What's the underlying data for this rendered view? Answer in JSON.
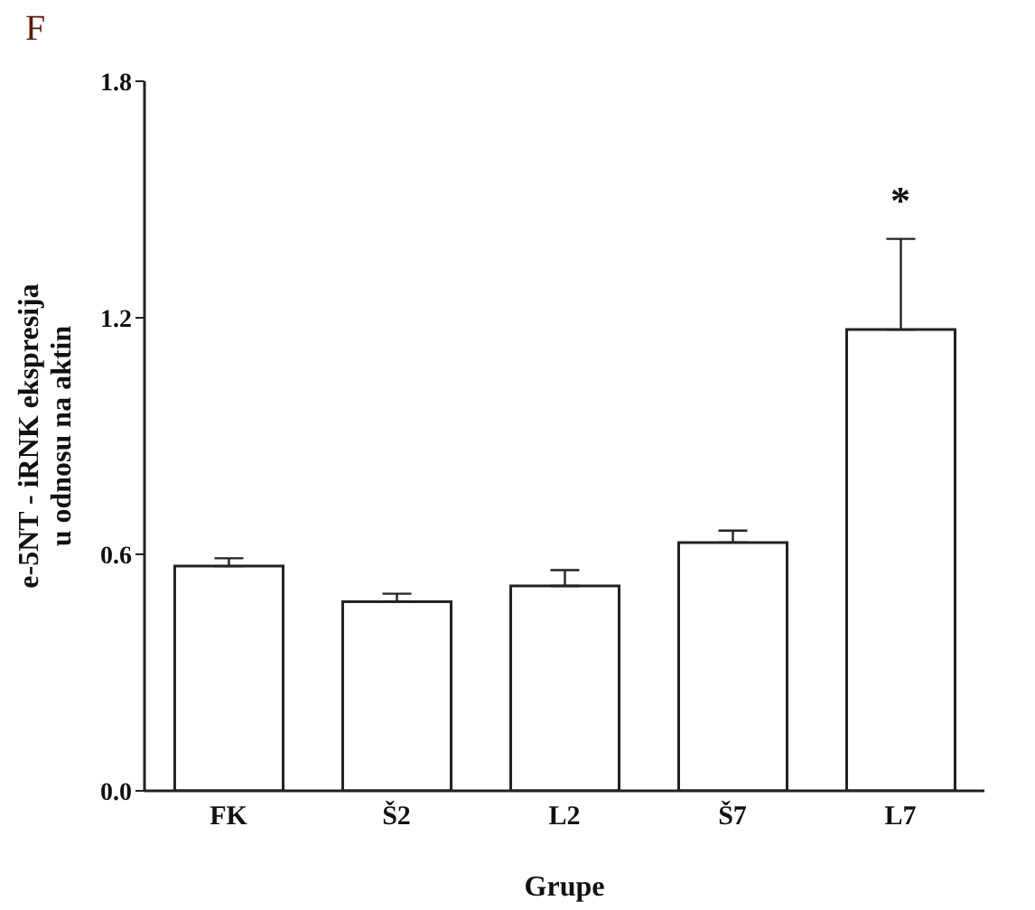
{
  "chart_data": {
    "type": "bar",
    "xlabel": "Grupe",
    "ylabel": "e-5NT - iRNK ekspresija\nu odnosu na aktin",
    "categories": [
      "FK",
      "Š2",
      "L2",
      "Š7",
      "L7"
    ],
    "values": [
      0.57,
      0.48,
      0.52,
      0.63,
      1.17
    ],
    "errors": [
      [
        0.57,
        0.59
      ],
      [
        0.48,
        0.5
      ],
      [
        0.52,
        0.56
      ],
      [
        0.63,
        0.66
      ],
      [
        1.17,
        1.4
      ]
    ],
    "color": "#ffffff",
    "ylim": [
      0,
      1.8
    ],
    "yticks": [
      {
        "value": 0,
        "label": "0.0"
      },
      0.6,
      1.2,
      1.8
    ],
    "grid": false,
    "annotations": [
      "F",
      "*"
    ]
  }
}
